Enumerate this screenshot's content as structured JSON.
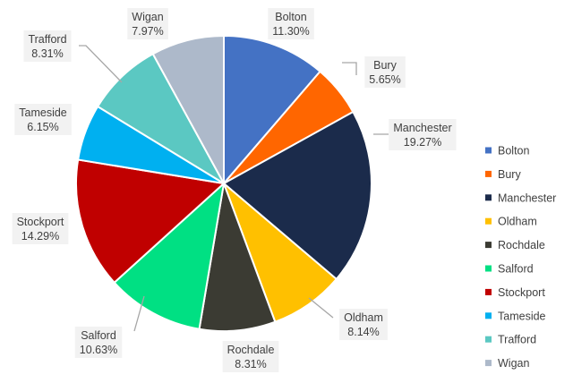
{
  "chart_data": {
    "type": "pie",
    "start_angle_deg": 0,
    "direction": "clockwise",
    "legend_position": "right",
    "slices": [
      {
        "label": "Bolton",
        "value": 11.3,
        "display": "11.30%",
        "color": "#4472C4"
      },
      {
        "label": "Bury",
        "value": 5.65,
        "display": "5.65%",
        "color": "#FF6600"
      },
      {
        "label": "Manchester",
        "value": 19.27,
        "display": "19.27%",
        "color": "#1B2B4B"
      },
      {
        "label": "Oldham",
        "value": 8.14,
        "display": "8.14%",
        "color": "#FFC000"
      },
      {
        "label": "Rochdale",
        "value": 8.31,
        "display": "8.31%",
        "color": "#3B3B33"
      },
      {
        "label": "Salford",
        "value": 10.63,
        "display": "10.63%",
        "color": "#00E083"
      },
      {
        "label": "Stockport",
        "value": 14.29,
        "display": "14.29%",
        "color": "#C00000"
      },
      {
        "label": "Tameside",
        "value": 6.15,
        "display": "6.15%",
        "color": "#00B0F0"
      },
      {
        "label": "Trafford",
        "value": 8.31,
        "display": "8.31%",
        "color": "#5BC8C2"
      },
      {
        "label": "Wigan",
        "value": 7.97,
        "display": "7.97%",
        "color": "#ADB9CA"
      }
    ]
  }
}
